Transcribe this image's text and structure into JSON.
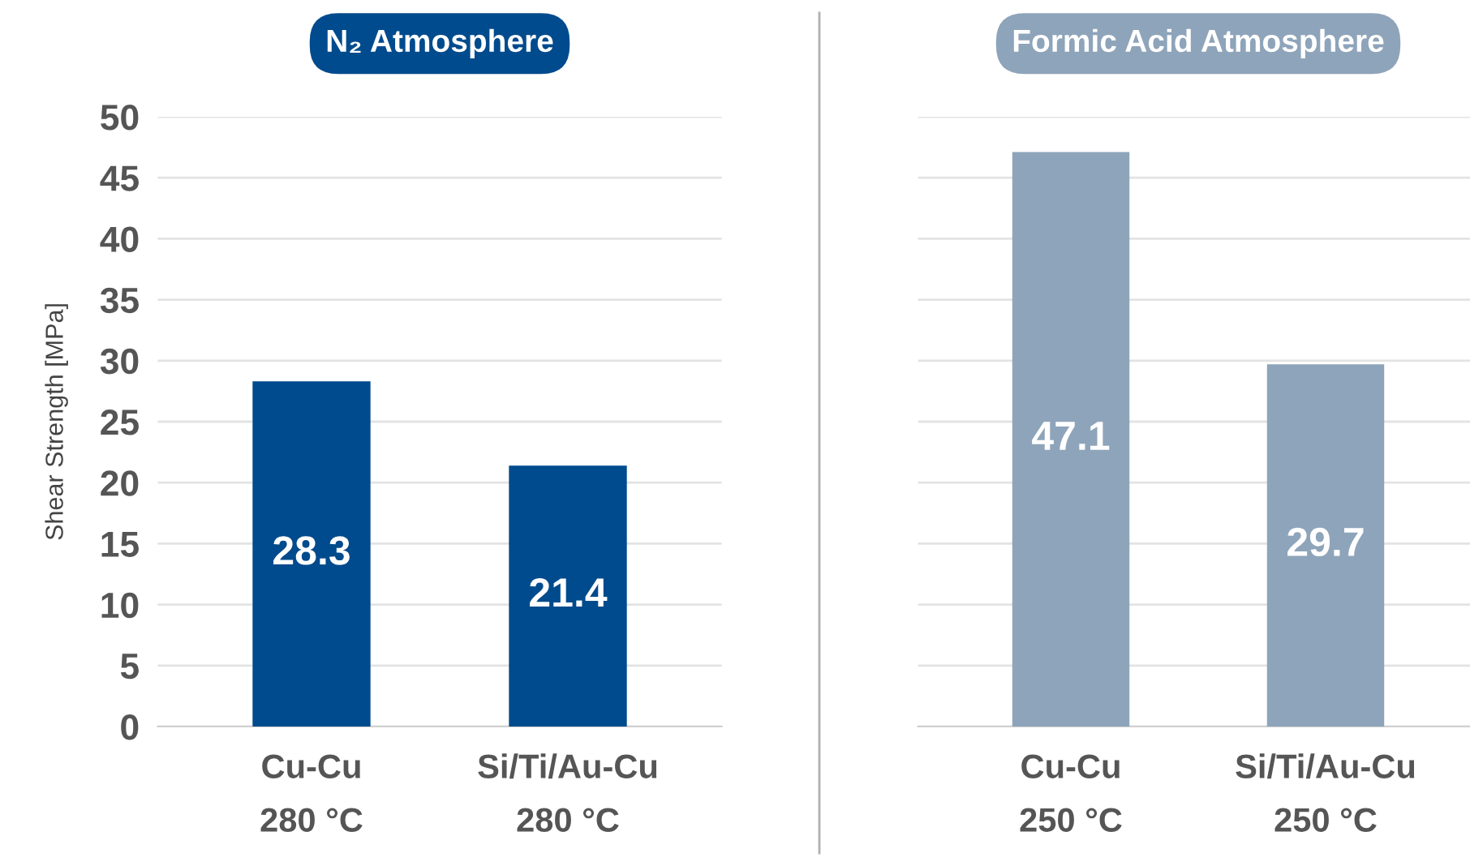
{
  "chart_data": [
    {
      "type": "bar",
      "title": "N₂ Atmosphere",
      "ylabel": "Shear Strength [MPa]",
      "categories": [
        "Cu-Cu\n280 °C",
        "Si/Ti/Au-Cu\n280 °C"
      ],
      "values": [
        28.3,
        21.4
      ],
      "color": "#004b8d",
      "ylim": [
        0,
        50
      ],
      "yticks": [
        0,
        5,
        10,
        15,
        20,
        25,
        30,
        35,
        40,
        45,
        50
      ],
      "grid": "y",
      "data_labels": true
    },
    {
      "type": "bar",
      "title": "Formic Acid Atmosphere",
      "categories": [
        "Cu-Cu\n250 °C",
        "Si/Ti/Au-Cu\n250 °C"
      ],
      "values": [
        47.1,
        29.7
      ],
      "color": "#8ea4ba",
      "ylim": [
        0,
        50
      ],
      "yticks": [
        0,
        5,
        10,
        15,
        20,
        25,
        30,
        35,
        40,
        45,
        50
      ],
      "grid": "y",
      "data_labels": true,
      "tick_labels": "x"
    }
  ]
}
